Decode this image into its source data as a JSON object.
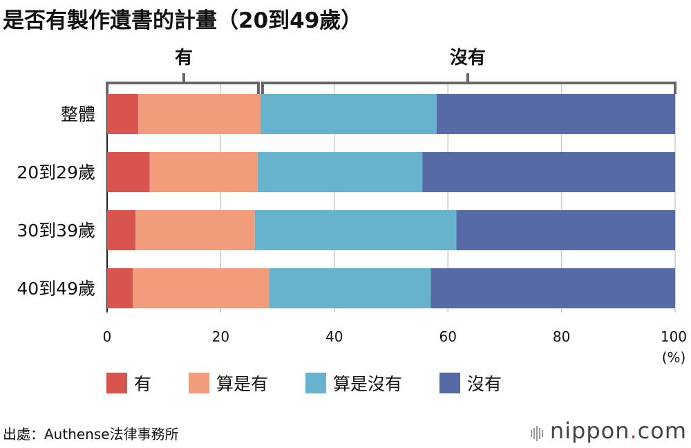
{
  "title": "是否有製作遺書的計畫（20到49歲）",
  "source": "出處：Authense法律事務所",
  "brand": {
    "name": "nippon",
    "dot": ".",
    "suffix": "com"
  },
  "colors": {
    "yes": "#d9534f",
    "leaning_yes": "#f29c7c",
    "leaning_no": "#67b3cd",
    "no": "#566aa6",
    "grid": "#cccccc",
    "bracket": "#666666"
  },
  "chart_data": {
    "type": "bar",
    "orientation": "horizontal",
    "stacked": true,
    "categories": [
      "整體",
      "20到29歲",
      "30到39歲",
      "40到49歲"
    ],
    "series": [
      {
        "name": "有",
        "values": [
          5.5,
          7.5,
          5.0,
          4.5
        ]
      },
      {
        "name": "算是有",
        "values": [
          21.5,
          19.0,
          21.0,
          24.0
        ]
      },
      {
        "name": "算是沒有",
        "values": [
          31.0,
          29.0,
          35.5,
          28.5
        ]
      },
      {
        "name": "沒有",
        "values": [
          42.0,
          44.5,
          38.5,
          43.0
        ]
      }
    ],
    "xlim": [
      0,
      100
    ],
    "xticks": [
      "0",
      "20",
      "40",
      "60",
      "80",
      "100"
    ],
    "x_unit": "(%)",
    "group_labels": [
      "有",
      "沒有"
    ],
    "grid": true,
    "legend_position": "bottom"
  }
}
